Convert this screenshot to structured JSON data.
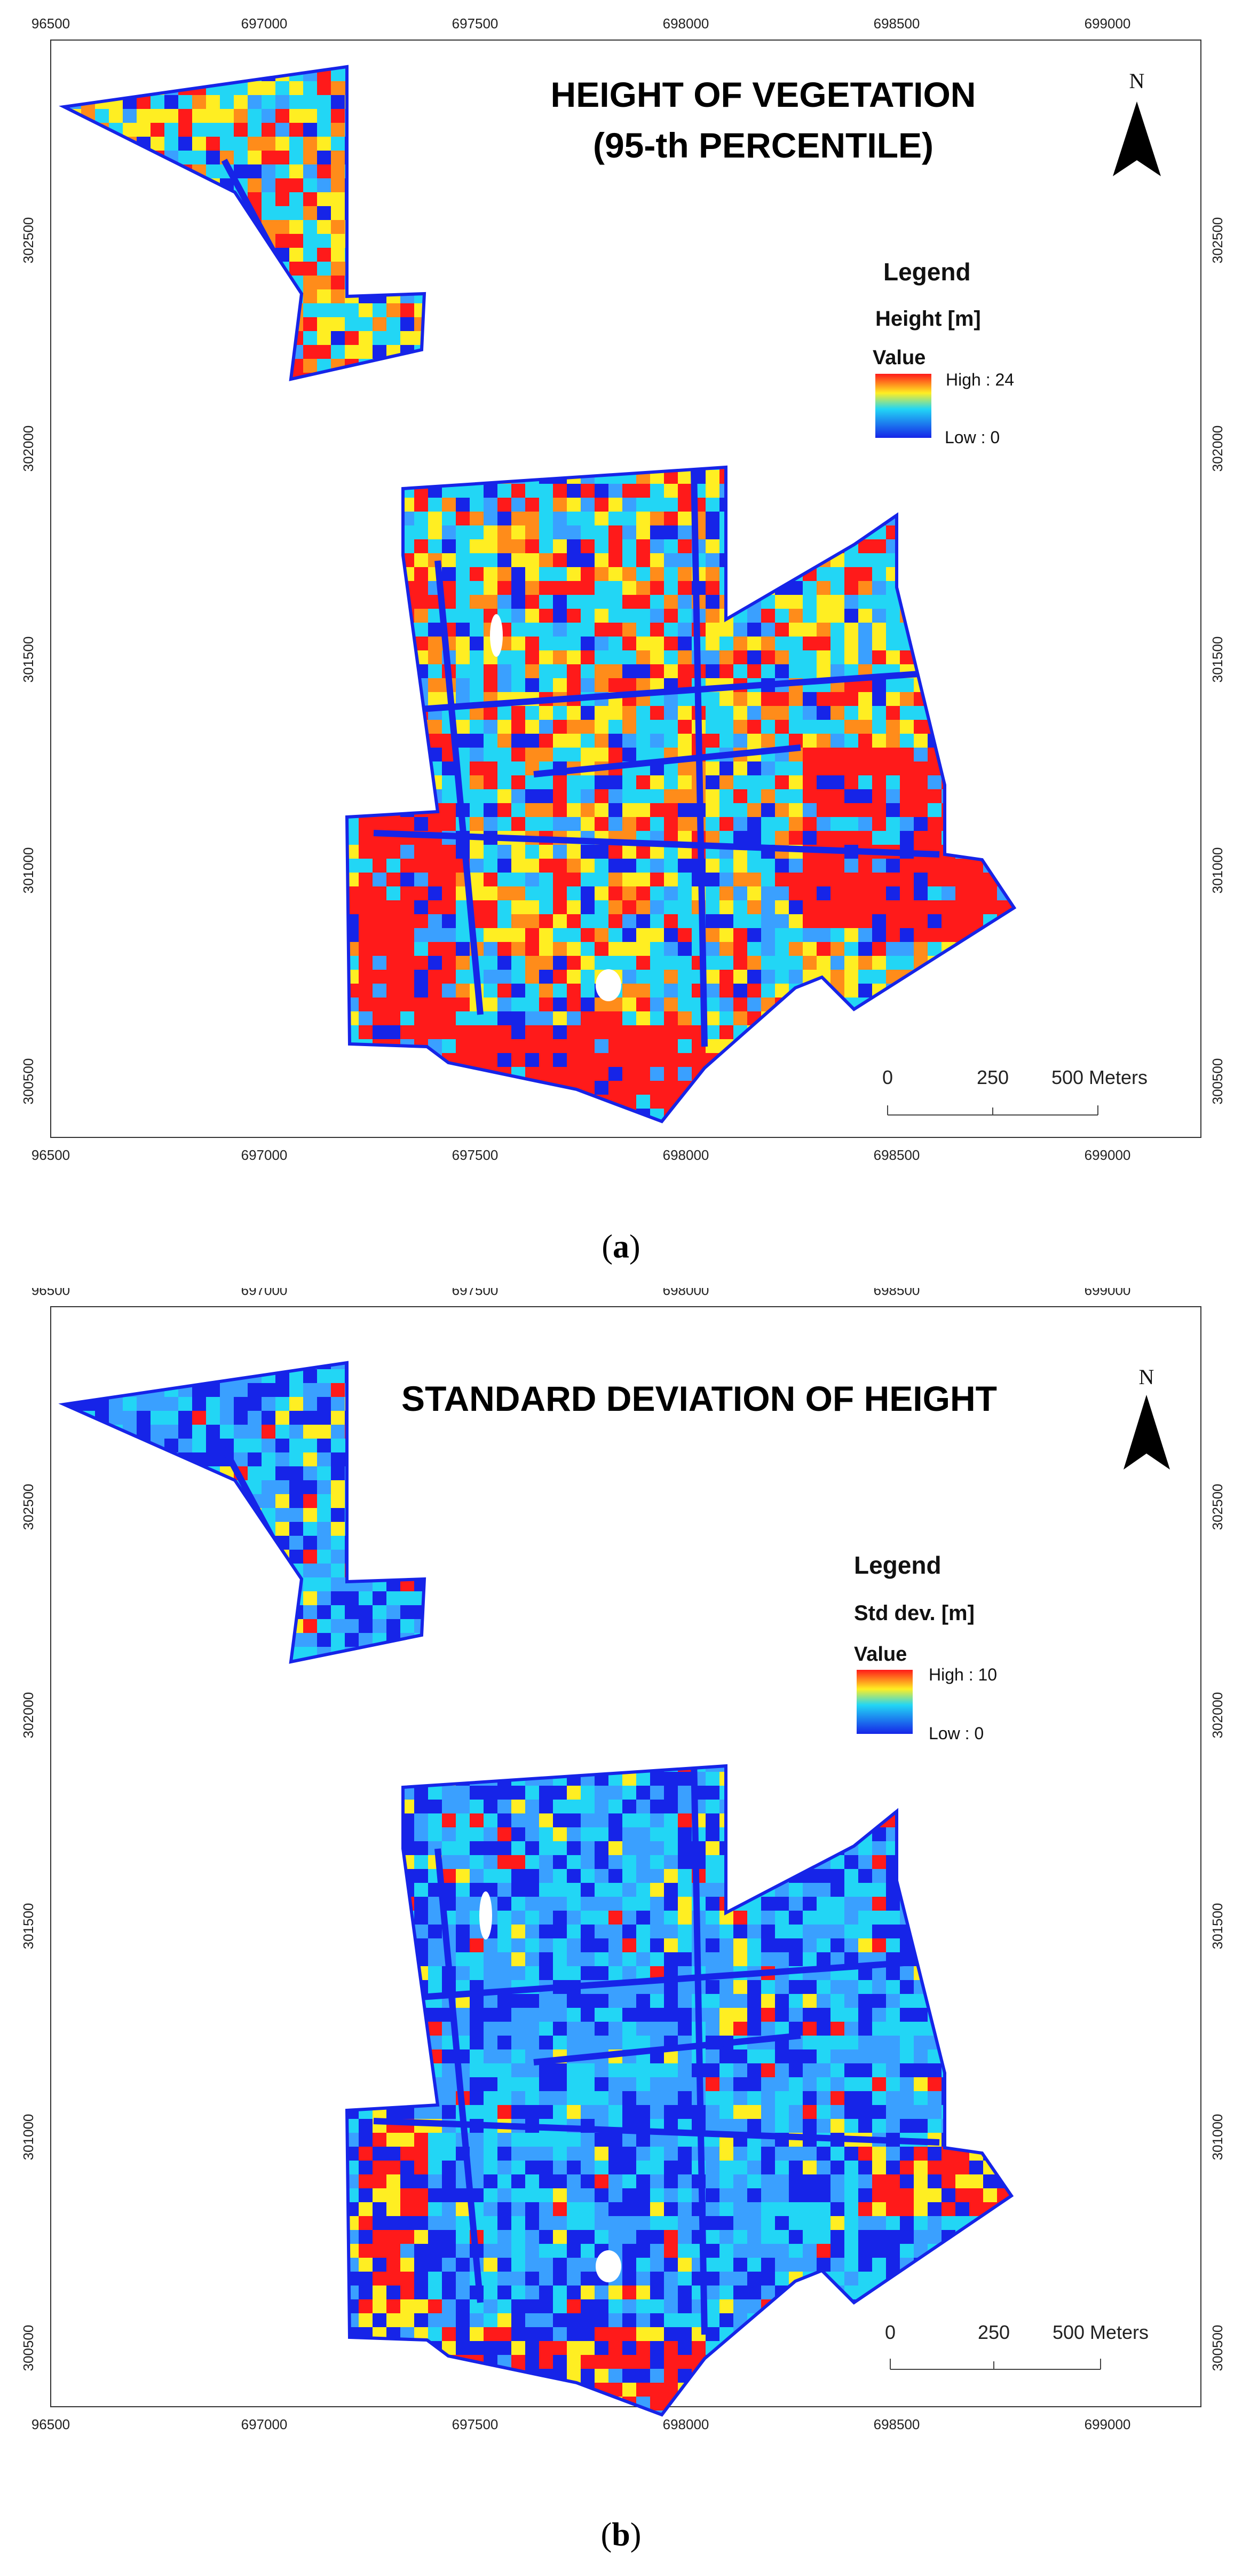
{
  "figure": {
    "colors": {
      "red": "#ff1a1a",
      "orange": "#ff8c1a",
      "yellow": "#ffee22",
      "cyan": "#22d6f5",
      "lightblue": "#3aa0ff",
      "blue": "#1624e8"
    },
    "panels": [
      {
        "id": "a",
        "caption_letter": "a",
        "title_lines": [
          "HEIGHT OF VEGETATION",
          "(95-th PERCENTILE)"
        ],
        "legend_heading": "Legend",
        "legend_title": "Height [m]",
        "legend_value_label": "Value",
        "legend_high": "High : 24",
        "legend_low": "Low : 0",
        "ticks_x": [
          "96500",
          "697000",
          "697500",
          "698000",
          "698500",
          "699000"
        ],
        "ticks_y": [
          "302500",
          "302000",
          "301500",
          "301000",
          "300500"
        ],
        "scale_labels": [
          "0",
          "250",
          "500 Meters"
        ],
        "north_label": "N",
        "dominant": "warm"
      },
      {
        "id": "b",
        "caption_letter": "b",
        "title_lines": [
          "STANDARD DEVIATION OF HEIGHT"
        ],
        "legend_heading": "Legend",
        "legend_title": "Std dev. [m]",
        "legend_value_label": "Value",
        "legend_high": "High : 10",
        "legend_low": "Low : 0",
        "ticks_x": [
          "96500",
          "697000",
          "697500",
          "698000",
          "698500",
          "699000"
        ],
        "ticks_y": [
          "302500",
          "302000",
          "301500",
          "301000",
          "300500"
        ],
        "scale_labels": [
          "0",
          "250",
          "500 Meters"
        ],
        "north_label": "N",
        "dominant": "cool"
      }
    ]
  }
}
